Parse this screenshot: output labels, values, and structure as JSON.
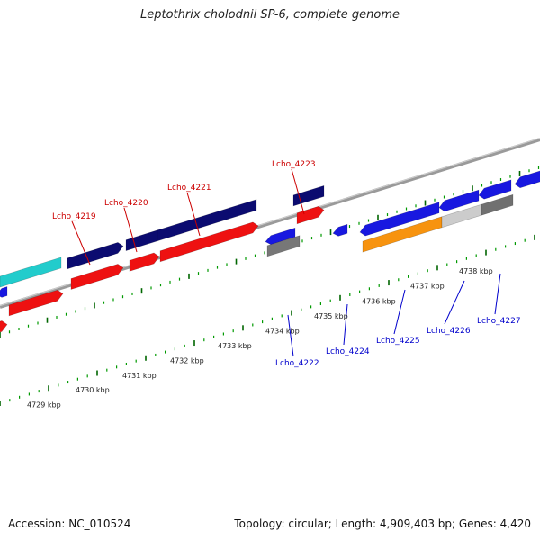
{
  "title": "Leptothrix cholodnii SP-6, complete genome",
  "accession": "Accession: NC_010524",
  "summary": "Topology: circular; Length: 4,909,403 bp; Genes: 4,420",
  "colors": {
    "label_forward": "#cc0000",
    "label_reverse": "#0000cc",
    "backbone": "#888888",
    "tick_major": "#006600",
    "tick_minor": "#009900"
  },
  "scale_labels": [
    "4729 kbp",
    "4730 kbp",
    "4731 kbp",
    "4732 kbp",
    "4733 kbp",
    "4734 kbp",
    "4735 kbp",
    "4736 kbp",
    "4737 kbp",
    "4738 kbp"
  ],
  "genes_top": [
    {
      "label": "Lcho_4219",
      "color": "#0b0b70"
    },
    {
      "label": "Lcho_4220",
      "color": "#0b0b70"
    },
    {
      "label": "Lcho_4221",
      "color": "#0b0b70"
    },
    {
      "label": "Lcho_4223",
      "color": "#0b0b70"
    }
  ],
  "genes_bottom": [
    {
      "label": "Lcho_4222",
      "color": "#1818e0"
    },
    {
      "label": "Lcho_4224",
      "color": "#1818e0"
    },
    {
      "label": "Lcho_4225",
      "color": "#1818e0"
    },
    {
      "label": "Lcho_4226",
      "color": "#1818e0"
    },
    {
      "label": "Lcho_4227",
      "color": "#1818e0"
    }
  ]
}
